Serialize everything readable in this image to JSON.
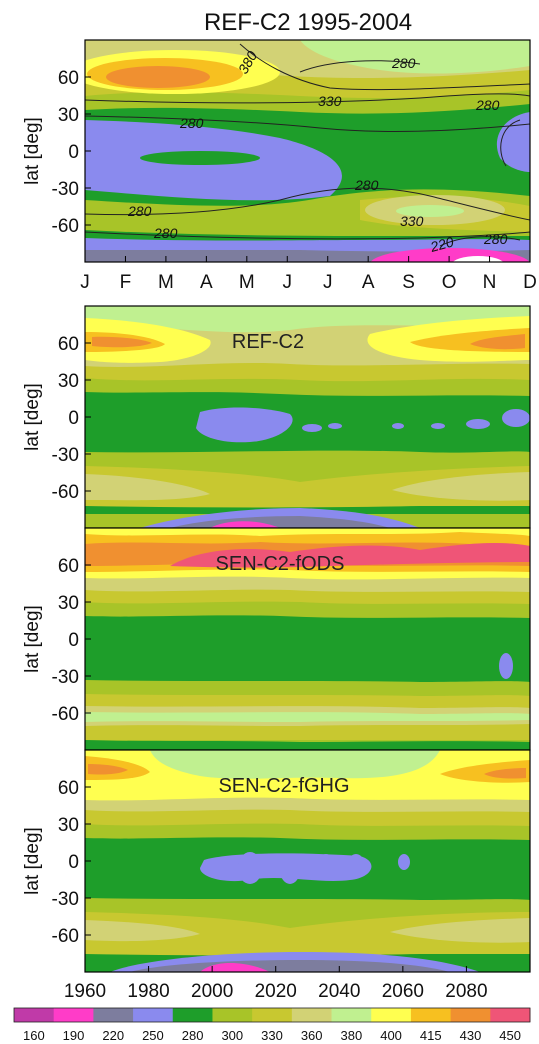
{
  "figure_title": "REF-C2 1995-2004",
  "colors": {
    "levels": [
      "#c03aa8",
      "#ff3cc8",
      "#7d7d9e",
      "#8a8aee",
      "#1e9e2a",
      "#a8c428",
      "#c8c830",
      "#d2d275",
      "#c0f090",
      "#ffff50",
      "#f7c020",
      "#f09030",
      "#ef5577"
    ],
    "boundaries": [
      160,
      190,
      220,
      250,
      280,
      300,
      330,
      360,
      380,
      400,
      415,
      430,
      450
    ]
  },
  "chart_data": [
    {
      "type": "heatmap",
      "title": "REF-C2 1995-2004",
      "ylabel": "lat [deg]",
      "xticks": [
        "J",
        "F",
        "M",
        "A",
        "M",
        "J",
        "J",
        "A",
        "S",
        "O",
        "N",
        "D"
      ],
      "yticks": [
        "60",
        "30",
        "0",
        "-30",
        "-60"
      ],
      "ytick_values": [
        60,
        30,
        0,
        -30,
        -60
      ],
      "ylim": [
        -90,
        90
      ],
      "contour_labels": [
        "380",
        "280",
        "330",
        "280",
        "280",
        "280",
        "280",
        "280",
        "330",
        "220",
        "280"
      ]
    },
    {
      "type": "heatmap",
      "title": "REF-C2",
      "ylabel": "lat [deg]",
      "yticks": [
        "60",
        "30",
        "0",
        "-30",
        "-60"
      ],
      "ytick_values": [
        60,
        30,
        0,
        -30,
        -60
      ],
      "xlim": [
        1960,
        2100
      ],
      "ylim": [
        -90,
        90
      ]
    },
    {
      "type": "heatmap",
      "title": "SEN-C2-fODS",
      "ylabel": "lat [deg]",
      "yticks": [
        "60",
        "30",
        "0",
        "-30",
        "-60"
      ],
      "ytick_values": [
        60,
        30,
        0,
        -30,
        -60
      ],
      "xlim": [
        1960,
        2100
      ],
      "ylim": [
        -90,
        90
      ]
    },
    {
      "type": "heatmap",
      "title": "SEN-C2-fGHG",
      "ylabel": "lat [deg]",
      "yticks": [
        "60",
        "30",
        "0",
        "-30",
        "-60"
      ],
      "ytick_values": [
        60,
        30,
        0,
        -30,
        -60
      ],
      "xticks": [
        "1960",
        "1980",
        "2000",
        "2020",
        "2040",
        "2060",
        "2080"
      ],
      "xtick_values": [
        1960,
        1980,
        2000,
        2020,
        2040,
        2060,
        2080
      ],
      "xlim": [
        1960,
        2100
      ],
      "ylim": [
        -90,
        90
      ]
    }
  ],
  "colorbar": {
    "labels": [
      "160",
      "190",
      "220",
      "250",
      "280",
      "300",
      "330",
      "360",
      "380",
      "400",
      "415",
      "430",
      "450"
    ]
  }
}
